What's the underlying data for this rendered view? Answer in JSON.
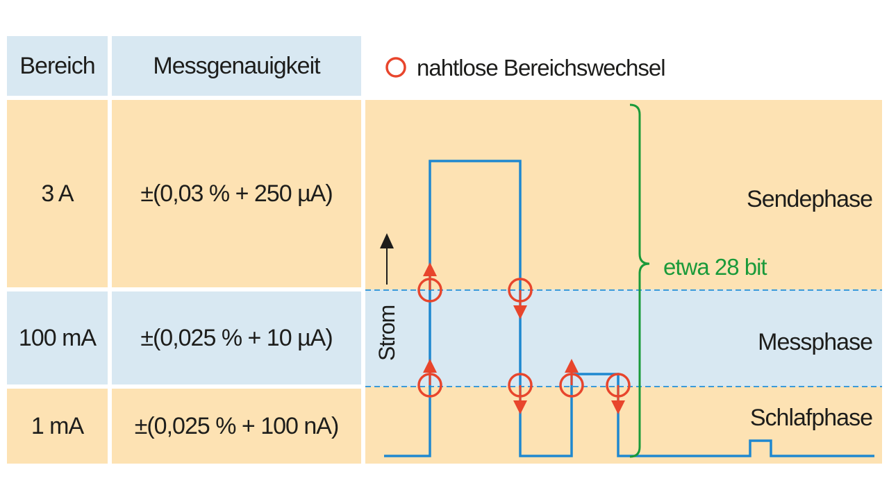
{
  "table": {
    "headers": {
      "range": "Bereich",
      "accuracy": "Messgenauigkeit"
    },
    "rows": [
      {
        "range": "3 A",
        "accuracy": "±(0,03 % + 250 µA)",
        "phase": "Sendephase"
      },
      {
        "range": "100 mA",
        "accuracy": "±(0,025 % + 10 µA)",
        "phase": "Messphase"
      },
      {
        "range": "1 mA",
        "accuracy": "±(0,025 % + 100 nA)",
        "phase": "Schlafphase"
      }
    ]
  },
  "legend": {
    "marker_label": "nahtlose Bereichswechsel"
  },
  "diagram": {
    "axis_label": "Strom",
    "brace_label": "etwa 28 bit"
  },
  "colors": {
    "header_blue": "#d8e8f2",
    "band_orange": "#fde2b3",
    "trace_blue": "#1e88d0",
    "marker_red": "#e8452c",
    "brace_green": "#1a9a3a",
    "threshold_blue": "#3a9ad9"
  }
}
